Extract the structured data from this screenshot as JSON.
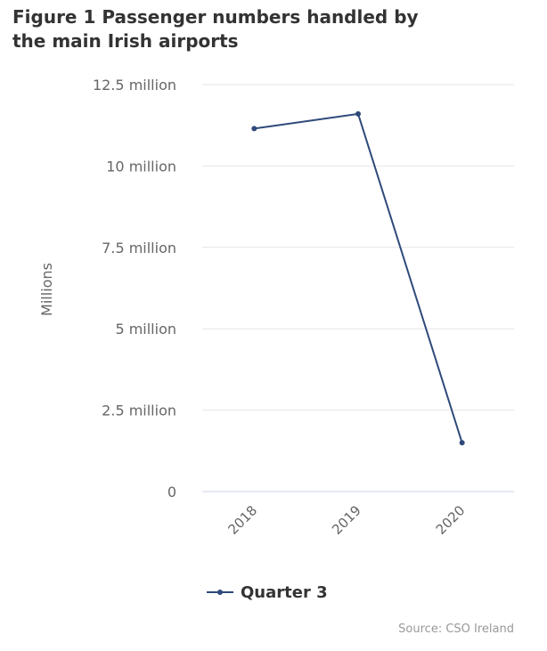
{
  "title_line1": "Figure 1 Passenger numbers handled by",
  "title_line2": "the main Irish airports",
  "credit": "Source: CSO Ireland",
  "colors": {
    "series": "#2f4a7a",
    "grid": "#e6e6e6",
    "axis": "#ccd6eb",
    "text": "#666666"
  },
  "chart_data": {
    "type": "line",
    "title": "Figure 1 Passenger numbers handled by the main Irish airports",
    "ylabel": "Millions",
    "xlabel": "",
    "categories": [
      "2018",
      "2019",
      "2020"
    ],
    "series": [
      {
        "name": "Quarter 3",
        "values": [
          11.15,
          11.6,
          1.5
        ]
      }
    ],
    "ylim": [
      0,
      12.5
    ],
    "yticks": [
      0,
      2.5,
      5,
      7.5,
      10,
      12.5
    ],
    "ytick_labels": [
      "0",
      "2.5 million",
      "5 million",
      "7.5 million",
      "10 million",
      "12.5 million"
    ],
    "grid": true,
    "legend_position": "bottom-center"
  }
}
